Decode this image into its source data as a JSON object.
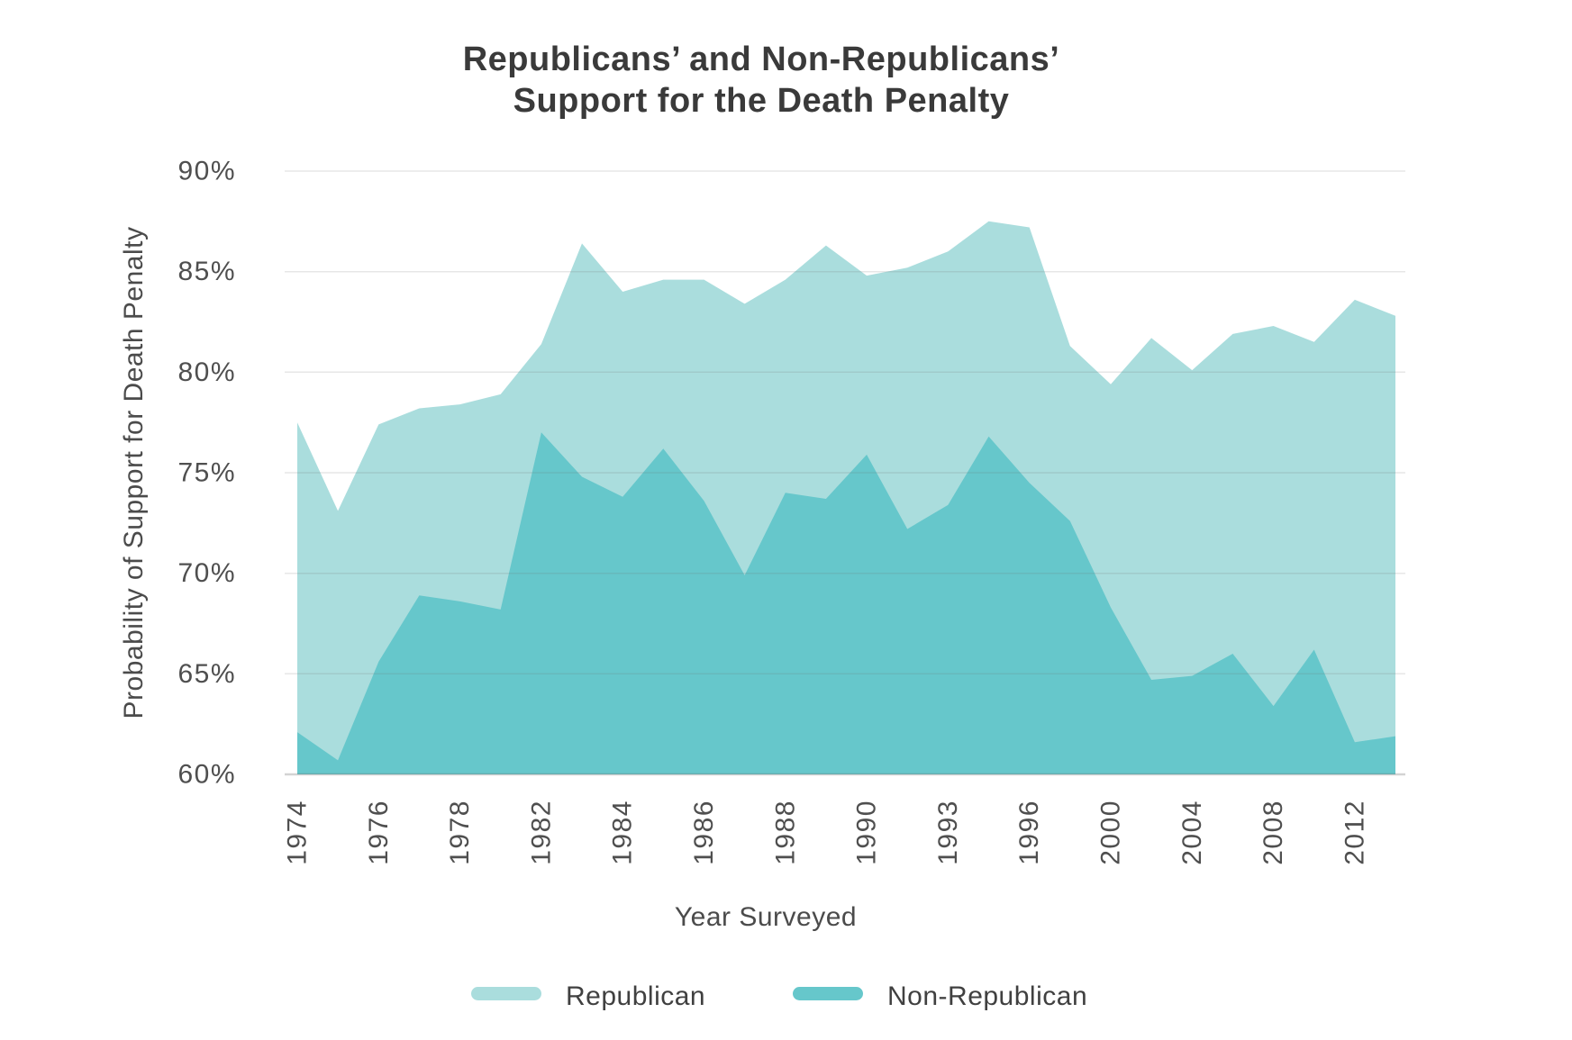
{
  "page": {
    "background": "#ffffff"
  },
  "title": {
    "line1": "Republicans’ and Non-Republicans’",
    "line2": "Support for the Death Penalty"
  },
  "y_axis": {
    "title": "Probability of Support for Death Penalty",
    "tick_labels": [
      "90%",
      "85%",
      "80%",
      "75%",
      "70%",
      "65%",
      "60%"
    ]
  },
  "x_axis": {
    "title": "Year Surveyed",
    "tick_labels": [
      "1974",
      "1976",
      "1978",
      "1982",
      "1984",
      "1986",
      "1988",
      "1990",
      "1993",
      "1996",
      "2000",
      "2004",
      "2008",
      "2012"
    ]
  },
  "legend": {
    "items": [
      {
        "label": "Republican",
        "color": "#aadddd"
      },
      {
        "label": "Non-Republican",
        "color": "#66c7cb"
      }
    ]
  },
  "chart_data": {
    "type": "area",
    "title": "Republicans’ and Non-Republicans’ Support for the Death Penalty",
    "xlabel": "Year Surveyed",
    "ylabel": "Probability of Support for Death Penalty",
    "ylim": [
      60,
      90
    ],
    "y_ticks": [
      90,
      85,
      80,
      75,
      70,
      65,
      60
    ],
    "x_tick_labels": [
      "1974",
      "1976",
      "1978",
      "1982",
      "1984",
      "1986",
      "1988",
      "1990",
      "1993",
      "1996",
      "2000",
      "2004",
      "2008",
      "2012"
    ],
    "grid": true,
    "legend_position": "bottom",
    "categories": [
      1974,
      1975,
      1976,
      1977,
      1978,
      1980,
      1982,
      1983,
      1984,
      1985,
      1986,
      1987,
      1988,
      1989,
      1990,
      1991,
      1993,
      1994,
      1996,
      1998,
      2000,
      2002,
      2004,
      2006,
      2008,
      2010,
      2012,
      2014
    ],
    "series": [
      {
        "name": "Republican",
        "color": "#aadddd",
        "values": [
          77.5,
          73.1,
          77.4,
          78.2,
          78.4,
          78.9,
          81.4,
          86.4,
          84.0,
          84.6,
          84.6,
          83.4,
          84.6,
          86.3,
          84.8,
          85.2,
          86.0,
          87.5,
          87.2,
          81.3,
          79.4,
          81.7,
          80.1,
          81.9,
          82.3,
          81.5,
          83.6,
          82.8
        ]
      },
      {
        "name": "Non-Republican",
        "color": "#66c7cb",
        "values": [
          62.1,
          60.7,
          65.6,
          68.9,
          68.6,
          68.2,
          77.0,
          74.8,
          73.8,
          76.2,
          73.6,
          69.9,
          74.0,
          73.7,
          75.9,
          72.2,
          73.4,
          76.8,
          74.5,
          72.6,
          68.3,
          64.7,
          64.9,
          66.0,
          63.4,
          66.2,
          61.6,
          61.9
        ]
      }
    ]
  }
}
